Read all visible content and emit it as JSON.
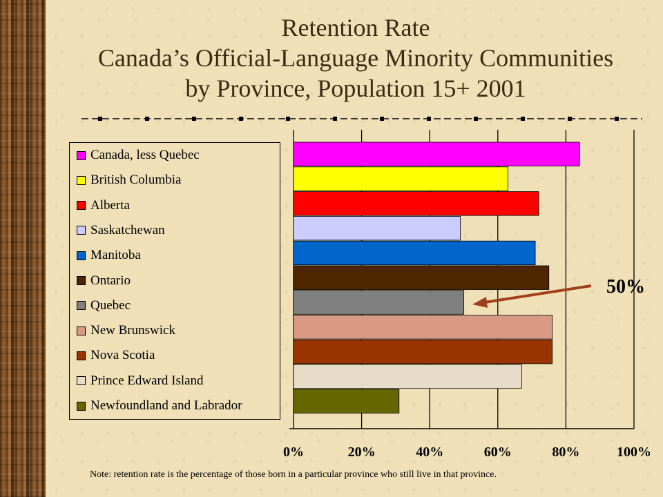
{
  "title_lines": [
    "Retention Rate",
    "Canada’s Official-Language Minority Communities",
    "by Province, Population 15+ 2001"
  ],
  "callout": {
    "label": "50%",
    "target_category": "Quebec"
  },
  "note": "Note:  retention rate is the percentage of those born in a particular province who still live in that province.",
  "chart_data": {
    "type": "bar",
    "orientation": "horizontal",
    "title": "",
    "xlabel": "",
    "ylabel": "",
    "xlim": [
      0,
      100
    ],
    "x_ticks": [
      "0%",
      "20%",
      "40%",
      "60%",
      "80%",
      "100%"
    ],
    "grid": true,
    "legend_position": "left",
    "categories": [
      "Canada, less Quebec",
      "British Columbia",
      "Alberta",
      "Saskatchewan",
      "Manitoba",
      "Ontario",
      "Quebec",
      "New Brunswick",
      "Nova Scotia",
      "Prince Edward Island",
      "Newfoundland and Labrador"
    ],
    "values": [
      84,
      63,
      72,
      49,
      71,
      75,
      50,
      76,
      76,
      67,
      31
    ],
    "colors": [
      "#ff00ff",
      "#ffff00",
      "#ff0000",
      "#ccccff",
      "#0066cc",
      "#4d2600",
      "#808080",
      "#d99a83",
      "#993300",
      "#e6dcc8",
      "#666600"
    ]
  }
}
